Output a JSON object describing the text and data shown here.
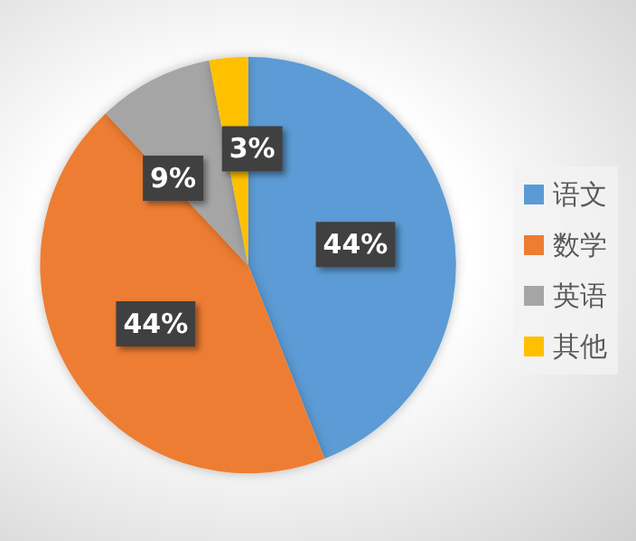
{
  "chart_data": {
    "type": "pie",
    "categories": [
      "语文",
      "数学",
      "英语",
      "其他"
    ],
    "values": [
      44,
      44,
      9,
      3
    ],
    "colors": [
      "#5b9bd5",
      "#ed7d31",
      "#a5a5a5",
      "#ffc000"
    ],
    "value_labels": [
      "44%",
      "44%",
      "9%",
      "3%"
    ],
    "legend": "right"
  }
}
